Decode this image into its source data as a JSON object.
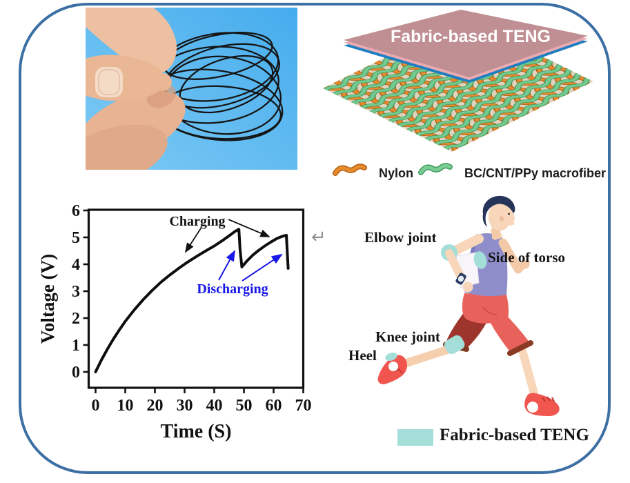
{
  "figure": {
    "border_color": "#3c6fa3",
    "background_color": "#ffffff"
  },
  "photo_panel": {
    "description": "Photograph of a hand pinching coiled black BC/CNT/PPy macrofiber loops",
    "background_color": "#4bb0ee",
    "fiber_color": "#151515"
  },
  "teng_panel": {
    "plate_label": "Fabric-based TENG",
    "plate_color": "#c08f94",
    "plate_edge_pink": "#eaabb1",
    "plate_edge_blue": "#1f7ec2",
    "legend": [
      {
        "label": "Nylon",
        "color": "#e78a2e",
        "icon": "orange-fiber-icon"
      },
      {
        "label": "BC/CNT/PPy macrofiber",
        "color": "#74ca8e",
        "icon": "green-fiber-icon"
      }
    ]
  },
  "chart_data": {
    "type": "line",
    "title": "",
    "xlabel": "Time (S)",
    "ylabel": "Voltage (V)",
    "xlim": [
      -2.4,
      70
    ],
    "ylim": [
      -0.6,
      6
    ],
    "xticks": [
      0,
      10,
      20,
      30,
      40,
      50,
      60,
      70
    ],
    "yticks": [
      0,
      1,
      2,
      3,
      4,
      5,
      6
    ],
    "grid": false,
    "legend_position": "none",
    "series": [
      {
        "name": "voltage",
        "color": "#0d0d0d",
        "points": [
          [
            0,
            0
          ],
          [
            2,
            0.45
          ],
          [
            4,
            0.85
          ],
          [
            6,
            1.22
          ],
          [
            8,
            1.56
          ],
          [
            10,
            1.88
          ],
          [
            13,
            2.3
          ],
          [
            16,
            2.68
          ],
          [
            19,
            3.02
          ],
          [
            22,
            3.33
          ],
          [
            25,
            3.6
          ],
          [
            28,
            3.85
          ],
          [
            31,
            4.08
          ],
          [
            34,
            4.29
          ],
          [
            37,
            4.49
          ],
          [
            40,
            4.68
          ],
          [
            43,
            4.9
          ],
          [
            45,
            5.06
          ],
          [
            47,
            5.22
          ],
          [
            48.3,
            5.3
          ],
          [
            48.7,
            4.55
          ],
          [
            49.3,
            3.9
          ],
          [
            51,
            4.12
          ],
          [
            53,
            4.34
          ],
          [
            55,
            4.52
          ],
          [
            57,
            4.68
          ],
          [
            59,
            4.82
          ],
          [
            61,
            4.95
          ],
          [
            63,
            5.04
          ],
          [
            64.3,
            5.08
          ],
          [
            64.9,
            3.85
          ]
        ]
      }
    ],
    "annotations": [
      {
        "text": "Charging",
        "color": "#111111",
        "points_to": "rising charge segments"
      },
      {
        "text": "Discharging",
        "color": "#1717e8",
        "points_to": "sharp voltage drops"
      }
    ]
  },
  "return_mark": "↵",
  "runner_panel": {
    "labels": {
      "elbow": "Elbow joint",
      "torso": "Side of torso",
      "knee": "Knee joint",
      "heel": "Heel"
    },
    "legend_label": "Fabric-based TENG",
    "patch_color": "#a3ded8"
  }
}
